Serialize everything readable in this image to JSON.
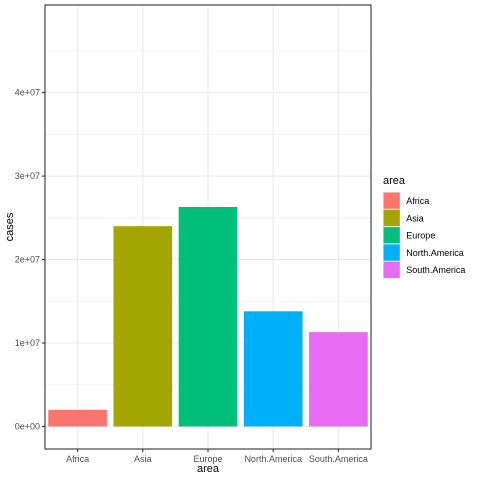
{
  "chart_data": {
    "type": "bar",
    "title": "",
    "xlabel": "area",
    "ylabel": "cases",
    "categories": [
      "Africa",
      "Asia",
      "Europe",
      "North.America",
      "South.America"
    ],
    "values": [
      2000000,
      24000000,
      26300000,
      13800000,
      11300000
    ],
    "colors": [
      "#F8766D",
      "#A3A500",
      "#00BF7D",
      "#00B0F6",
      "#E76BF3"
    ],
    "ylim": [
      -2700000,
      50500000
    ],
    "yticks": [
      0,
      10000000,
      20000000,
      30000000,
      40000000
    ],
    "ytick_labels": [
      "0e+00",
      "1e+07",
      "2e+07",
      "3e+07",
      "4e+07"
    ],
    "grid": true,
    "legend": {
      "title": "area",
      "placement": "right",
      "entries": [
        "Africa",
        "Asia",
        "Europe",
        "North.America",
        "South.America"
      ]
    }
  }
}
